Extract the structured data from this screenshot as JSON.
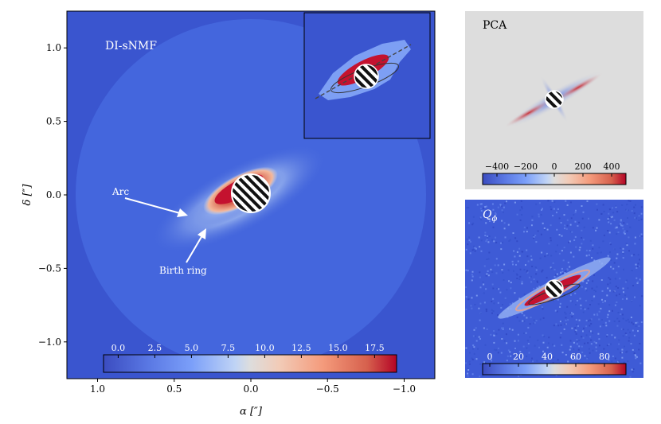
{
  "chart_data": [
    {
      "type": "heatmap",
      "panel": "main",
      "title": "DI-sNMF",
      "xlabel": "α [″]",
      "ylabel": "δ [″]",
      "xlim": [
        1.2,
        -1.2
      ],
      "ylim": [
        -1.25,
        1.25
      ],
      "xticks": [
        1.0,
        0.5,
        0.0,
        -0.5,
        -1.0
      ],
      "xtick_labels": [
        "1.0",
        "0.5",
        "0.0",
        "−0.5",
        "−1.0"
      ],
      "yticks": [
        1.0,
        0.5,
        0.0,
        -0.5,
        -1.0
      ],
      "ytick_labels": [
        "1.0",
        "0.5",
        "0.0",
        "−0.5",
        "−1.0"
      ],
      "colorbar": {
        "range": [
          -1.0,
          19.0
        ],
        "ticks": [
          0.0,
          2.5,
          5.0,
          7.5,
          10.0,
          12.5,
          15.0,
          17.5
        ],
        "tick_labels": [
          "0.0",
          "2.5",
          "5.0",
          "7.5",
          "10.0",
          "12.5",
          "15.0",
          "17.5"
        ]
      },
      "annotations": [
        {
          "text": "Arc"
        },
        {
          "text": "Birth ring"
        }
      ],
      "has_inset": true
    },
    {
      "type": "heatmap",
      "panel": "top-right",
      "title": "PCA",
      "colorbar": {
        "range": [
          -500,
          500
        ],
        "ticks": [
          -400,
          -200,
          0,
          200,
          400
        ],
        "tick_labels": [
          "−400",
          "−200",
          "0",
          "200",
          "400"
        ]
      }
    },
    {
      "type": "heatmap",
      "panel": "bottom-right",
      "title": "Q",
      "title_subscript": "ϕ",
      "colorbar": {
        "range": [
          -5,
          95
        ],
        "ticks": [
          0,
          20,
          40,
          60,
          80
        ],
        "tick_labels": [
          "0",
          "20",
          "40",
          "60",
          "80"
        ]
      }
    }
  ],
  "colors": {
    "low": "#3b4cc0",
    "mid": "#dddddd",
    "high": "#b40426",
    "field": "#4466dd"
  }
}
